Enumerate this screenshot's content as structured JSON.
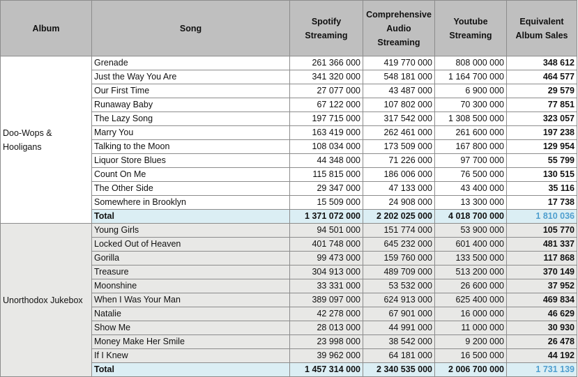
{
  "headers": {
    "album": "Album",
    "song": "Song",
    "spotify": "Spotify Streaming",
    "audio": "Comprehensive Audio Streaming",
    "youtube": "Youtube Streaming",
    "eas": "Equivalent Album Sales"
  },
  "albums": [
    {
      "name": "Doo-Wops & Hooligans",
      "songs": [
        {
          "song": "Grenade",
          "spotify": "261 366 000",
          "audio": "419 770 000",
          "youtube": "808 000 000",
          "eas": "348 612"
        },
        {
          "song": "Just the Way You Are",
          "spotify": "341 320 000",
          "audio": "548 181 000",
          "youtube": "1 164 700 000",
          "eas": "464 577"
        },
        {
          "song": "Our First Time",
          "spotify": "27 077 000",
          "audio": "43 487 000",
          "youtube": "6 900 000",
          "eas": "29 579"
        },
        {
          "song": "Runaway Baby",
          "spotify": "67 122 000",
          "audio": "107 802 000",
          "youtube": "70 300 000",
          "eas": "77 851"
        },
        {
          "song": "The Lazy Song",
          "spotify": "197 715 000",
          "audio": "317 542 000",
          "youtube": "1 308 500 000",
          "eas": "323 057"
        },
        {
          "song": "Marry You",
          "spotify": "163 419 000",
          "audio": "262 461 000",
          "youtube": "261 600 000",
          "eas": "197 238"
        },
        {
          "song": "Talking to the Moon",
          "spotify": "108 034 000",
          "audio": "173 509 000",
          "youtube": "167 800 000",
          "eas": "129 954"
        },
        {
          "song": "Liquor Store Blues",
          "spotify": "44 348 000",
          "audio": "71 226 000",
          "youtube": "97 700 000",
          "eas": "55 799"
        },
        {
          "song": "Count On Me",
          "spotify": "115 815 000",
          "audio": "186 006 000",
          "youtube": "76 500 000",
          "eas": "130 515"
        },
        {
          "song": "The Other Side",
          "spotify": "29 347 000",
          "audio": "47 133 000",
          "youtube": "43 400 000",
          "eas": "35 116"
        },
        {
          "song": "Somewhere in Brooklyn",
          "spotify": "15 509 000",
          "audio": "24 908 000",
          "youtube": "13 300 000",
          "eas": "17 738"
        }
      ],
      "total": {
        "label": "Total",
        "spotify": "1 371 072 000",
        "audio": "2 202 025 000",
        "youtube": "4 018 700 000",
        "eas": "1 810 036"
      }
    },
    {
      "name": "Unorthodox Jukebox",
      "songs": [
        {
          "song": "Young Girls",
          "spotify": "94 501 000",
          "audio": "151 774 000",
          "youtube": "53 900 000",
          "eas": "105 770"
        },
        {
          "song": "Locked Out of Heaven",
          "spotify": "401 748 000",
          "audio": "645 232 000",
          "youtube": "601 400 000",
          "eas": "481 337"
        },
        {
          "song": "Gorilla",
          "spotify": "99 473 000",
          "audio": "159 760 000",
          "youtube": "133 500 000",
          "eas": "117 868"
        },
        {
          "song": "Treasure",
          "spotify": "304 913 000",
          "audio": "489 709 000",
          "youtube": "513 200 000",
          "eas": "370 149"
        },
        {
          "song": "Moonshine",
          "spotify": "33 331 000",
          "audio": "53 532 000",
          "youtube": "26 600 000",
          "eas": "37 952"
        },
        {
          "song": "When I Was Your Man",
          "spotify": "389 097 000",
          "audio": "624 913 000",
          "youtube": "625 400 000",
          "eas": "469 834"
        },
        {
          "song": "Natalie",
          "spotify": "42 278 000",
          "audio": "67 901 000",
          "youtube": "16 000 000",
          "eas": "46 629"
        },
        {
          "song": "Show Me",
          "spotify": "28 013 000",
          "audio": "44 991 000",
          "youtube": "11 000 000",
          "eas": "30 930"
        },
        {
          "song": "Money Make Her Smile",
          "spotify": "23 998 000",
          "audio": "38 542 000",
          "youtube": "9 200 000",
          "eas": "26 478"
        },
        {
          "song": "If I Knew",
          "spotify": "39 962 000",
          "audio": "64 181 000",
          "youtube": "16 500 000",
          "eas": "44 192"
        }
      ],
      "total": {
        "label": "Total",
        "spotify": "1 457 314 000",
        "audio": "2 340 535 000",
        "youtube": "2 006 700 000",
        "eas": "1 731 139"
      }
    }
  ],
  "colors": {
    "header_bg": "#bfbfbf",
    "total_bg": "#dbeef4",
    "total_eas_text": "#4f9fcf",
    "group2_bg": "#e8e8e6",
    "border": "#8c8c8c"
  }
}
